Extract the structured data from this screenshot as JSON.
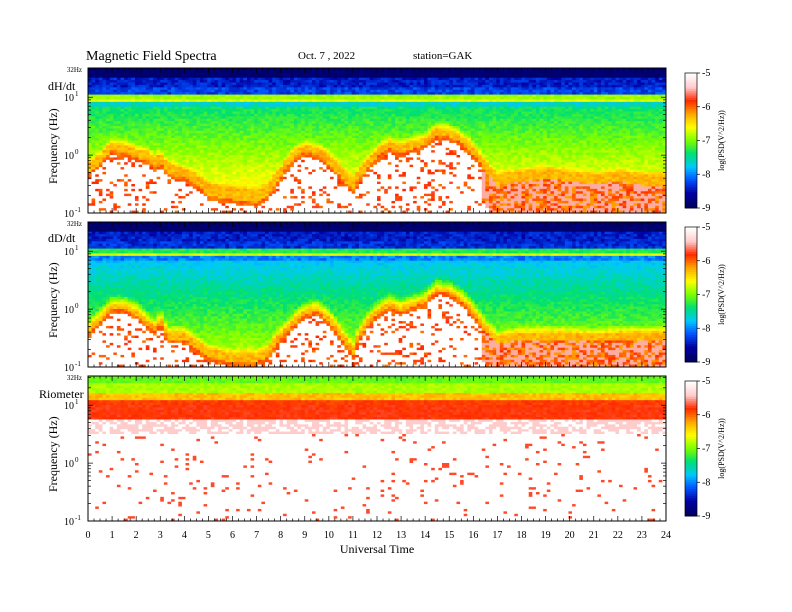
{
  "header": {
    "title": "Magnetic  Field  Spectra",
    "date": "Oct. 7  , 2022",
    "station": "station=GAK"
  },
  "colors": {
    "background": "#ffffff",
    "colormap": [
      "#ffffff",
      "#ffcccc",
      "#ff2a00",
      "#ffa500",
      "#ffff00",
      "#7dff00",
      "#00e070",
      "#00c8ff",
      "#0050ff",
      "#0000a0",
      "#000060"
    ]
  },
  "chart_data": [
    {
      "type": "heatmap",
      "panel_label": "dH/dt",
      "ylabel": "Frequency  (Hz)",
      "ytick_labels": [
        "32Hz",
        "10^1",
        "10^0",
        "10^-1"
      ],
      "x_range": [
        0,
        24
      ],
      "x_ticks": [
        0,
        1,
        2,
        3,
        4,
        5,
        6,
        7,
        8,
        9,
        10,
        11,
        12,
        13,
        14,
        15,
        16,
        17,
        18,
        19,
        20,
        21,
        22,
        23,
        24
      ],
      "freq_range_hz": [
        0.1,
        32
      ],
      "yscale": "log",
      "colorbar": {
        "label": "log(PSD(V^2/Hz))",
        "range": [
          -9,
          -5
        ],
        "ticks": [
          "-5",
          "-6",
          "-7",
          "-8",
          "-9"
        ]
      },
      "ridge_freq_hz": {
        "x": [
          0,
          0.5,
          1,
          1.5,
          2,
          2.5,
          2.8,
          3,
          3.3,
          3.6,
          4,
          4.5,
          5,
          5.5,
          6,
          6.5,
          7,
          7.5,
          8,
          8.5,
          9,
          9.5,
          10,
          10.5,
          11,
          11.5,
          12,
          12.5,
          13,
          13.5,
          14,
          14.5,
          15,
          15.5,
          16,
          16.5,
          17,
          18,
          19,
          20,
          21,
          22,
          23,
          24
        ],
        "y": [
          0.5,
          0.7,
          1.2,
          1.1,
          0.9,
          0.8,
          0.6,
          0.75,
          0.5,
          0.45,
          0.4,
          0.3,
          0.2,
          0.18,
          0.17,
          0.16,
          0.15,
          0.2,
          0.4,
          0.8,
          1.1,
          1.0,
          0.7,
          0.4,
          0.25,
          0.5,
          0.9,
          1.3,
          1.1,
          1.3,
          1.5,
          2.3,
          2.1,
          1.6,
          1.0,
          0.5,
          0.3,
          0.35,
          0.4,
          0.35,
          0.3,
          0.35,
          0.3,
          0.3
        ]
      },
      "baseline_db": 0.85,
      "low_db": 0.2
    },
    {
      "type": "heatmap",
      "panel_label": "dD/dt",
      "ylabel": "Frequency  (Hz)",
      "ytick_labels": [
        "32Hz",
        "10^1",
        "10^0",
        "10^-1"
      ],
      "x_range": [
        0,
        24
      ],
      "x_ticks": [
        0,
        1,
        2,
        3,
        4,
        5,
        6,
        7,
        8,
        9,
        10,
        11,
        12,
        13,
        14,
        15,
        16,
        17,
        18,
        19,
        20,
        21,
        22,
        23,
        24
      ],
      "freq_range_hz": [
        0.1,
        32
      ],
      "yscale": "log",
      "colorbar": {
        "label": "log(PSD(V^2/Hz))",
        "range": [
          -9,
          -5
        ],
        "ticks": [
          "-5",
          "-6",
          "-7",
          "-8",
          "-9"
        ]
      },
      "ridge_freq_hz": {
        "x": [
          0,
          0.5,
          1,
          1.5,
          2,
          2.5,
          2.8,
          3,
          3.3,
          3.6,
          4,
          4.5,
          5,
          5.5,
          6,
          6.5,
          7,
          7.5,
          8,
          8.5,
          9,
          9.5,
          10,
          10.5,
          11,
          11.5,
          12,
          12.5,
          13,
          13.5,
          14,
          14.5,
          15,
          15.5,
          16,
          16.5,
          17,
          18,
          19,
          20,
          21,
          22,
          23,
          24
        ],
        "y": [
          0.35,
          0.6,
          1.0,
          1.0,
          0.8,
          0.5,
          0.4,
          0.6,
          0.3,
          0.3,
          0.3,
          0.2,
          0.15,
          0.13,
          0.12,
          0.12,
          0.12,
          0.15,
          0.3,
          0.5,
          0.8,
          0.9,
          0.6,
          0.3,
          0.15,
          0.45,
          0.8,
          1.1,
          0.9,
          1.1,
          1.3,
          2.1,
          1.9,
          1.4,
          0.8,
          0.4,
          0.25,
          0.3,
          0.3,
          0.3,
          0.28,
          0.3,
          0.3,
          0.3
        ]
      },
      "baseline_db": 0.5,
      "low_db": 0.15
    },
    {
      "type": "heatmap",
      "panel_label": "Riometer",
      "ylabel": "Frequency  (Hz)",
      "ytick_labels": [
        "32Hz",
        "10^1",
        "10^0",
        "10^-1"
      ],
      "x_range": [
        0,
        24
      ],
      "x_ticks": [
        0,
        1,
        2,
        3,
        4,
        5,
        6,
        7,
        8,
        9,
        10,
        11,
        12,
        13,
        14,
        15,
        16,
        17,
        18,
        19,
        20,
        21,
        22,
        23,
        24
      ],
      "freq_range_hz": [
        0.1,
        32
      ],
      "yscale": "log",
      "colorbar": {
        "label": "log(PSD(V^2/Hz))",
        "range": [
          -9,
          -5
        ],
        "ticks": [
          "-5",
          "-6",
          "-7",
          "-8",
          "-9"
        ]
      },
      "note": "bright band near 10-15 Hz, mostly white below ~3 Hz"
    }
  ],
  "xaxis": {
    "label": "Universal Time",
    "tick_labels": [
      "0",
      "1",
      "2",
      "3",
      "4",
      "5",
      "6",
      "7",
      "8",
      "9",
      "10",
      "11",
      "12",
      "13",
      "14",
      "15",
      "16",
      "17",
      "18",
      "19",
      "20",
      "21",
      "22",
      "23",
      "24"
    ]
  }
}
